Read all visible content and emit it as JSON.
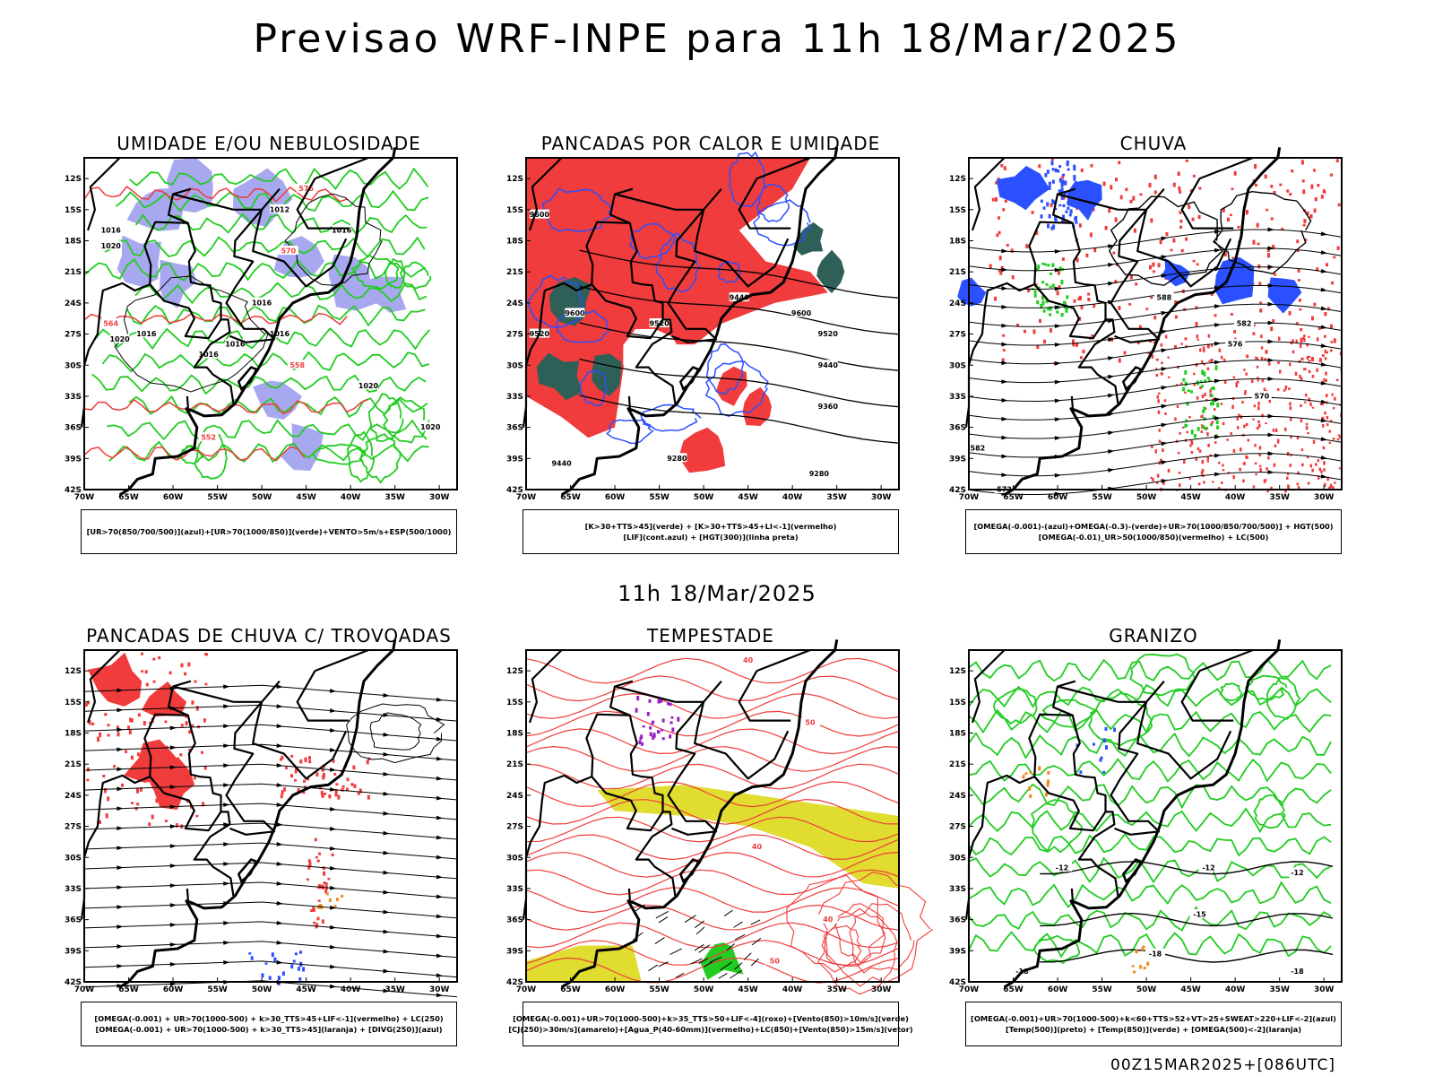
{
  "title": "Previsao WRF-INPE  para 11h 18/Mar/2025",
  "subtitle": "11h 18/Mar/2025",
  "footer": "00Z15MAR2025+[086UTC]",
  "colors": {
    "background": "#ffffff",
    "red": "#f03c3c",
    "green": "#22cc22",
    "blue": "#2a50ff",
    "lavender": "#a8a8f0",
    "darkteal": "#2e6058",
    "yellow": "#e0dc30",
    "orange": "#f08a20",
    "purple": "#9a20c8",
    "black": "#000000"
  },
  "axes": {
    "lon_ticks": [
      "70W",
      "65W",
      "60W",
      "55W",
      "50W",
      "45W",
      "40W",
      "35W",
      "30W"
    ],
    "lat_ticks": [
      "12S",
      "15S",
      "18S",
      "21S",
      "24S",
      "27S",
      "30S",
      "33S",
      "36S",
      "39S",
      "42S"
    ]
  },
  "chart_data": [
    {
      "type": "heatmap",
      "title": "UMIDADE E/OU NEBULOSIDADE",
      "xlabel": "",
      "ylabel": "",
      "xlim": [
        -70,
        -28
      ],
      "ylim": [
        -42,
        -10
      ],
      "legend": [
        "[UR>70(850/700/500)](azul)+[UR>70(1000/850)](verde)+VENTO>5m/s+ESP(500/1000)"
      ],
      "contour_labels": [
        "1016",
        "1012",
        "1016",
        "1016",
        "1020",
        "1016",
        "1016",
        "1016",
        "1020",
        "1016",
        "1020",
        "1020",
        "576",
        "570",
        "564",
        "558",
        "552"
      ]
    },
    {
      "type": "heatmap",
      "title": "PANCADAS POR CALOR E UMIDADE",
      "xlabel": "",
      "ylabel": "",
      "xlim": [
        -70,
        -28
      ],
      "ylim": [
        -42,
        -10
      ],
      "legend": [
        "[K>30+TTS>45](verde) + [K>30+TTS>45+LI<-1](vermelho)",
        "[LIF](cont.azul) + [HGT(300)](linha preta)"
      ],
      "contour_labels": [
        "9600",
        "9520",
        "9600",
        "9520",
        "9440",
        "9600",
        "9520",
        "9440",
        "9360",
        "9440",
        "9280",
        "9280"
      ]
    },
    {
      "type": "heatmap",
      "title": "CHUVA",
      "xlabel": "",
      "ylabel": "",
      "xlim": [
        -70,
        -28
      ],
      "ylim": [
        -42,
        -10
      ],
      "legend": [
        "[OMEGA(-0.001)-(azul)+OMEGA(-0.3)-(verde)+UR>70(1000/850/700/500)] + HGT(500)",
        "[OMEGA(-0.01)_UR>50(1000/850)(vermelho) + LC(500)"
      ],
      "contour_labels": [
        "588",
        "582",
        "576",
        "570",
        "582",
        "573"
      ]
    },
    {
      "type": "heatmap",
      "title": "PANCADAS DE CHUVA C/ TROVOADAS",
      "xlabel": "",
      "ylabel": "",
      "xlim": [
        -70,
        -28
      ],
      "ylim": [
        -42,
        -10
      ],
      "legend": [
        "[OMEGA(-0.001) + UR>70(1000-500) + k>30_TTS>45+LIF<-1](vermelho) + LC(250)",
        "[OMEGA(-0.001) + UR>70(1000-500) + k>30_TTS>45](laranja) + [DIVG(250)](azul)"
      ],
      "contour_labels": []
    },
    {
      "type": "heatmap",
      "title": "TEMPESTADE",
      "xlabel": "",
      "ylabel": "",
      "xlim": [
        -70,
        -28
      ],
      "ylim": [
        -42,
        -10
      ],
      "legend": [
        "[OMEGA(-0.001)+UR>70(1000-500)+k>35_TTS>50+LIF<-4](roxo)+[Vento(850)>10m/s](verde)",
        "[CJ(250)>30m/s](amarelo)+[Agua_P(40-60mm)](vermelho)+LC(850)+[Vento(850)>15m/s](vetor)"
      ],
      "contour_labels": [
        "40",
        "50",
        "40",
        "40",
        "50"
      ]
    },
    {
      "type": "heatmap",
      "title": "GRANIZO",
      "xlabel": "",
      "ylabel": "",
      "xlim": [
        -70,
        -28
      ],
      "ylim": [
        -42,
        -10
      ],
      "legend": [
        "[OMEGA(-0.001)+UR>70(1000-500)+k<60+TTS>52+VT>25+SWEAT>220+LIF<-2](azul)",
        "[Temp(500)](preto) + [Temp(850)](verde) + [OMEGA(500)<-2](laranja)"
      ],
      "contour_labels": [
        "-12",
        "-12",
        "-12",
        "-15",
        "-18",
        "-18",
        "-18"
      ]
    }
  ]
}
